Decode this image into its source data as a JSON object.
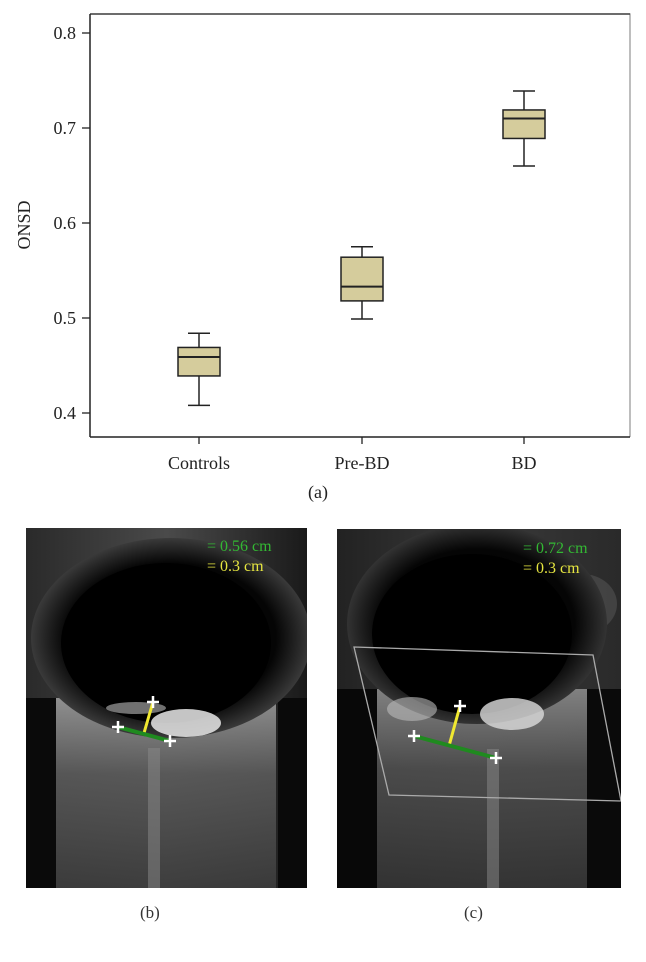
{
  "chart_data": {
    "type": "box",
    "title": "",
    "panel_label": "(a)",
    "xlabel": "",
    "ylabel": "ONSD",
    "ylim": [
      0.375,
      0.815
    ],
    "yticks": [
      0.4,
      0.5,
      0.6,
      0.7,
      0.8
    ],
    "ytick_labels": [
      "0.4",
      "0.5",
      "0.6",
      "0.7",
      "0.8"
    ],
    "categories": [
      "Controls",
      "Pre-BD",
      "BD"
    ],
    "box_color": "#d5cc9c",
    "grid": false,
    "legend": null,
    "series": [
      {
        "name": "Controls",
        "whisker_low": 0.408,
        "q1": 0.439,
        "median": 0.459,
        "q3": 0.469,
        "whisker_high": 0.484
      },
      {
        "name": "Pre-BD",
        "whisker_low": 0.499,
        "q1": 0.518,
        "median": 0.533,
        "q3": 0.564,
        "whisker_high": 0.575
      },
      {
        "name": "BD",
        "whisker_low": 0.66,
        "q1": 0.689,
        "median": 0.71,
        "q3": 0.719,
        "whisker_high": 0.739
      }
    ]
  },
  "panels": {
    "b": {
      "label": "(b)",
      "green_measure": "= 0.56 cm",
      "yellow_measure": "= 0.3 cm"
    },
    "c": {
      "label": "(c)",
      "green_measure": "= 0.72 cm",
      "yellow_measure": "= 0.3 cm"
    }
  },
  "colors": {
    "green_caliper": "#1f8a1f",
    "yellow_caliper": "#f0e830",
    "green_text": "#33b833",
    "yellow_text": "#e6e640"
  }
}
